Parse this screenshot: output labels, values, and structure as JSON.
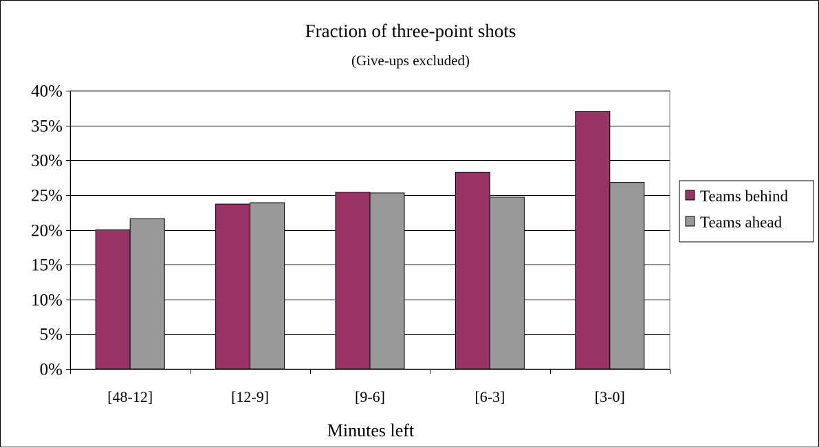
{
  "chart_data": {
    "type": "bar",
    "title": "Fraction of three-point shots",
    "subtitle": "(Give-ups excluded)",
    "xlabel": "Minutes left",
    "ylabel": "",
    "categories": [
      "[48-12]",
      "[12-9]",
      "[9-6]",
      "[6-3]",
      "[3-0]"
    ],
    "series": [
      {
        "name": "Teams behind",
        "color": "#993366",
        "values": [
          0.2,
          0.237,
          0.254,
          0.283,
          0.37
        ]
      },
      {
        "name": "Teams ahead",
        "color": "#999999",
        "values": [
          0.216,
          0.239,
          0.253,
          0.247,
          0.268
        ]
      }
    ],
    "ylim": [
      0,
      0.4
    ],
    "y_ticks": [
      {
        "value": 0.0,
        "label": "0%"
      },
      {
        "value": 0.05,
        "label": "5%"
      },
      {
        "value": 0.1,
        "label": "10%"
      },
      {
        "value": 0.15,
        "label": "15%"
      },
      {
        "value": 0.2,
        "label": "20%"
      },
      {
        "value": 0.25,
        "label": "25%"
      },
      {
        "value": 0.3,
        "label": "30%"
      },
      {
        "value": 0.35,
        "label": "35%"
      },
      {
        "value": 0.4,
        "label": "40%"
      }
    ],
    "grid": true,
    "legend_position": "right"
  }
}
